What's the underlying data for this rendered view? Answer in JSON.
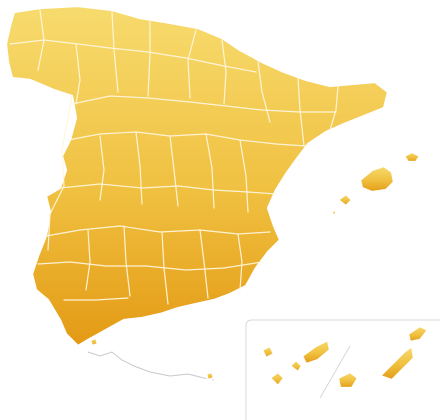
{
  "map": {
    "colors": {
      "fill_top": "#f7db6e",
      "fill_mid": "#f0c040",
      "fill_bottom": "#e39a14",
      "border": "#ffffff",
      "inset_frame": "#d8d8d8",
      "africa_coast": "#c9c9c9"
    },
    "regions": [
      "mainland",
      "balearic-islands",
      "canary-islands-inset",
      "ceuta-melilla-coast"
    ]
  }
}
